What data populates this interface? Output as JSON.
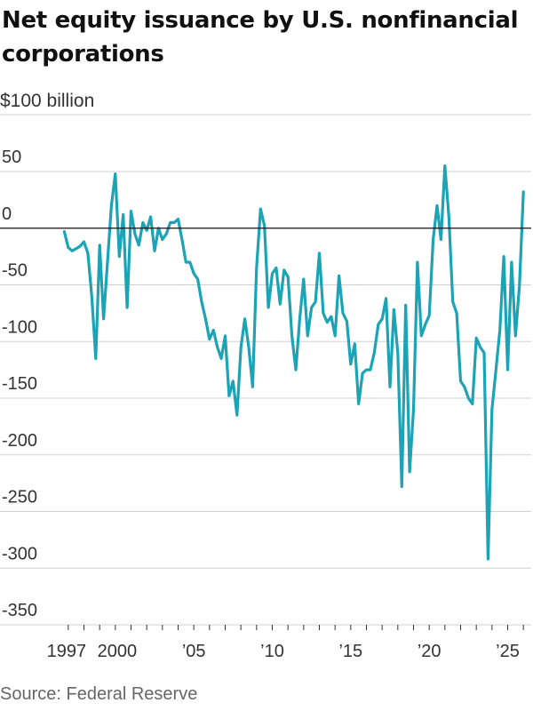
{
  "title": "Net equity issuance by U.S. nonfinancial corporations",
  "source": "Source: Federal Reserve",
  "colors": {
    "line": "#1ba3b6",
    "grid": "#d0d0d0",
    "zero": "#111111"
  },
  "chart_data": {
    "type": "line",
    "title": "Net equity issuance by U.S. nonfinancial corporations",
    "unit_label": "$100 billion",
    "xlabel": "",
    "ylabel": "",
    "ylim": [
      -350,
      50
    ],
    "xlim": [
      1996.5,
      2026.5
    ],
    "grid": true,
    "y_ticks": [
      {
        "value": 50,
        "label": "50"
      },
      {
        "value": 0,
        "label": "0"
      },
      {
        "value": -50,
        "label": "-50"
      },
      {
        "value": -100,
        "label": "-100"
      },
      {
        "value": -150,
        "label": "-150"
      },
      {
        "value": -200,
        "label": "-200"
      },
      {
        "value": -250,
        "label": "-250"
      },
      {
        "value": -300,
        "label": "-300"
      },
      {
        "value": -350,
        "label": "-350"
      }
    ],
    "x_ticks": [
      {
        "value": 1997,
        "label": "1997"
      },
      {
        "value": 2000,
        "label": "2000"
      },
      {
        "value": 2005,
        "label": "’05"
      },
      {
        "value": 2010,
        "label": "’10"
      },
      {
        "value": 2015,
        "label": "’15"
      },
      {
        "value": 2020,
        "label": "’20"
      },
      {
        "value": 2025,
        "label": "’25"
      }
    ],
    "series": [
      {
        "values": [
          [
            1996.75,
            -3
          ],
          [
            1997.0,
            -17
          ],
          [
            1997.25,
            -20
          ],
          [
            1997.5,
            -18
          ],
          [
            1997.75,
            -16
          ],
          [
            1998.0,
            -12
          ],
          [
            1998.25,
            -22
          ],
          [
            1998.5,
            -60
          ],
          [
            1998.75,
            -115
          ],
          [
            1999.0,
            -15
          ],
          [
            1999.25,
            -80
          ],
          [
            1999.5,
            -30
          ],
          [
            1999.75,
            20
          ],
          [
            2000.0,
            48
          ],
          [
            2000.25,
            -25
          ],
          [
            2000.5,
            12
          ],
          [
            2000.75,
            -70
          ],
          [
            2001.0,
            15
          ],
          [
            2001.25,
            -5
          ],
          [
            2001.5,
            -15
          ],
          [
            2001.75,
            5
          ],
          [
            2002.0,
            -2
          ],
          [
            2002.25,
            10
          ],
          [
            2002.5,
            -20
          ],
          [
            2002.75,
            0
          ],
          [
            2003.0,
            -10
          ],
          [
            2003.25,
            -5
          ],
          [
            2003.5,
            5
          ],
          [
            2003.75,
            5
          ],
          [
            2004.0,
            8
          ],
          [
            2004.25,
            -10
          ],
          [
            2004.5,
            -30
          ],
          [
            2004.75,
            -30
          ],
          [
            2005.0,
            -40
          ],
          [
            2005.25,
            -45
          ],
          [
            2005.5,
            -65
          ],
          [
            2005.75,
            -80
          ],
          [
            2006.0,
            -98
          ],
          [
            2006.25,
            -90
          ],
          [
            2006.5,
            -105
          ],
          [
            2006.75,
            -115
          ],
          [
            2007.0,
            -95
          ],
          [
            2007.25,
            -148
          ],
          [
            2007.5,
            -135
          ],
          [
            2007.75,
            -165
          ],
          [
            2008.0,
            -105
          ],
          [
            2008.25,
            -80
          ],
          [
            2008.5,
            -105
          ],
          [
            2008.75,
            -140
          ],
          [
            2009.0,
            -35
          ],
          [
            2009.25,
            17
          ],
          [
            2009.5,
            2
          ],
          [
            2009.75,
            -70
          ],
          [
            2010.0,
            -40
          ],
          [
            2010.25,
            -35
          ],
          [
            2010.5,
            -67
          ],
          [
            2010.75,
            -37
          ],
          [
            2011.0,
            -43
          ],
          [
            2011.25,
            -95
          ],
          [
            2011.5,
            -125
          ],
          [
            2011.75,
            -80
          ],
          [
            2012.0,
            -45
          ],
          [
            2012.25,
            -95
          ],
          [
            2012.5,
            -70
          ],
          [
            2012.75,
            -65
          ],
          [
            2013.0,
            -22
          ],
          [
            2013.25,
            -75
          ],
          [
            2013.5,
            -83
          ],
          [
            2013.75,
            -78
          ],
          [
            2014.0,
            -95
          ],
          [
            2014.25,
            -42
          ],
          [
            2014.5,
            -75
          ],
          [
            2014.75,
            -82
          ],
          [
            2015.0,
            -120
          ],
          [
            2015.25,
            -102
          ],
          [
            2015.5,
            -155
          ],
          [
            2015.75,
            -128
          ],
          [
            2016.0,
            -125
          ],
          [
            2016.25,
            -125
          ],
          [
            2016.5,
            -110
          ],
          [
            2016.75,
            -85
          ],
          [
            2017.0,
            -80
          ],
          [
            2017.25,
            -62
          ],
          [
            2017.5,
            -140
          ],
          [
            2017.75,
            -72
          ],
          [
            2018.0,
            -110
          ],
          [
            2018.25,
            -228
          ],
          [
            2018.5,
            -68
          ],
          [
            2018.75,
            -215
          ],
          [
            2019.0,
            -160
          ],
          [
            2019.25,
            -30
          ],
          [
            2019.5,
            -95
          ],
          [
            2019.75,
            -85
          ],
          [
            2020.0,
            -77
          ],
          [
            2020.25,
            -10
          ],
          [
            2020.5,
            20
          ],
          [
            2020.75,
            -10
          ],
          [
            2021.0,
            55
          ],
          [
            2021.25,
            10
          ],
          [
            2021.5,
            -65
          ],
          [
            2021.75,
            -75
          ],
          [
            2022.0,
            -135
          ],
          [
            2022.25,
            -140
          ],
          [
            2022.5,
            -150
          ],
          [
            2022.75,
            -155
          ],
          [
            2023.0,
            -97
          ],
          [
            2023.25,
            -105
          ],
          [
            2023.5,
            -110
          ],
          [
            2023.75,
            -292
          ],
          [
            2024.0,
            -160
          ],
          [
            2024.25,
            -125
          ],
          [
            2024.5,
            -90
          ],
          [
            2024.75,
            -25
          ],
          [
            2025.0,
            -125
          ],
          [
            2025.25,
            -30
          ],
          [
            2025.5,
            -95
          ],
          [
            2025.75,
            -50
          ],
          [
            2026.0,
            32
          ]
        ]
      }
    ]
  }
}
